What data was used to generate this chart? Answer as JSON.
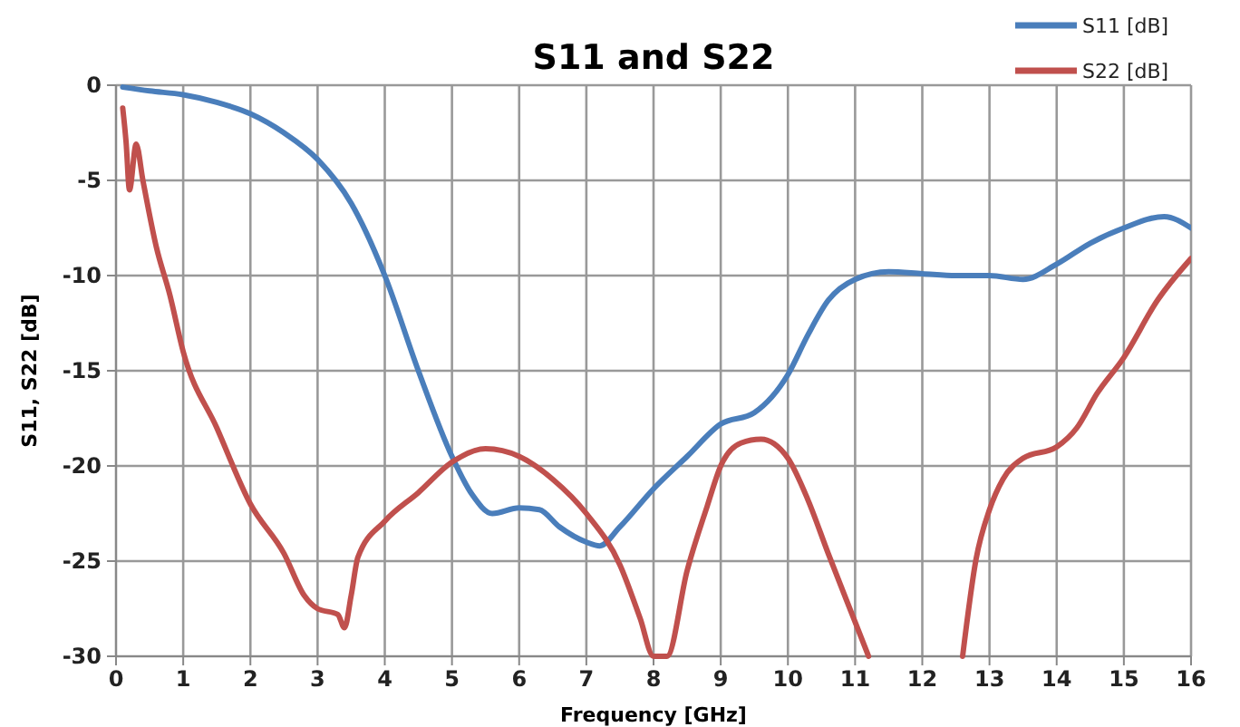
{
  "chart_data": {
    "type": "line",
    "title": "S11 and S22",
    "xlabel": "Frequency [GHz]",
    "ylabel": "S11, S22 [dB]",
    "xlim": [
      0,
      16
    ],
    "xticks": [
      0,
      1,
      2,
      3,
      4,
      5,
      6,
      7,
      8,
      9,
      10,
      11,
      12,
      13,
      14,
      15,
      16
    ],
    "ylim": [
      -30,
      0
    ],
    "yticks": [
      -30,
      -25,
      -20,
      -15,
      -10,
      -5,
      0
    ],
    "grid": true,
    "legend": "top right",
    "marker": "none",
    "line_style": "solid",
    "series": [
      {
        "name": "S11 [dB]",
        "color": "#4a7ebb",
        "x": [
          0.1,
          0.5,
          1,
          1.5,
          2,
          2.5,
          3,
          3.5,
          4,
          4.5,
          5,
          5.3,
          5.6,
          6,
          6.3,
          6.6,
          7,
          7.2,
          7.5,
          8,
          8.5,
          9,
          9.5,
          10,
          10.3,
          10.6,
          11,
          11.5,
          12,
          12.5,
          13,
          13.5,
          14,
          14.5,
          15,
          15.6,
          16
        ],
        "values": [
          -0.1,
          -0.3,
          -0.5,
          -0.9,
          -1.5,
          -2.5,
          -3.9,
          -6.2,
          -10,
          -15,
          -19.5,
          -21.5,
          -22.5,
          -22.2,
          -22.3,
          -23.2,
          -24,
          -24.2,
          -23.2,
          -21.2,
          -19.5,
          -17.8,
          -17.2,
          -15.2,
          -13.1,
          -11.3,
          -10.2,
          -9.8,
          -9.9,
          -10,
          -10,
          -10.2,
          -9.4,
          -8.3,
          -7.5,
          -6.9,
          -7.5
        ]
      },
      {
        "name": "S22 [dB]",
        "color": "#c0504d",
        "x": [
          0.1,
          0.15,
          0.2,
          0.3,
          0.4,
          0.6,
          0.8,
          1,
          1.5,
          2,
          2.5,
          2.8,
          3,
          3.3,
          3.4,
          3.5,
          3.6,
          4,
          4.5,
          5,
          5.5,
          6,
          6.5,
          7,
          7.5,
          7.8,
          8,
          8.2,
          8.5,
          8.8,
          9,
          9.3,
          9.6,
          10,
          10.3,
          10.6,
          11,
          11.2,
          11.9,
          12.6,
          12.8,
          13,
          13.2,
          13.5,
          14,
          14.3,
          14.6,
          15,
          15.5,
          16
        ],
        "values": [
          -1.2,
          -3,
          -5.5,
          -3.1,
          -5,
          -8.5,
          -11,
          -14,
          -18,
          -22,
          -24.6,
          -26.8,
          -27.5,
          -27.8,
          -28.5,
          -26.8,
          -24.8,
          -22.9,
          -21.4,
          -19.8,
          -19.1,
          -19.5,
          -20.7,
          -22.5,
          -25.2,
          -28,
          -30,
          -30,
          -25.5,
          -22.1,
          -20,
          -18.8,
          -18.6,
          -19.6,
          -21.8,
          -24.6,
          -28.2,
          -30,
          null,
          -30,
          -24.9,
          -22.3,
          -20.7,
          -19.6,
          -19,
          -18,
          -16.2,
          -14.3,
          -11.3,
          -9.1
        ]
      }
    ]
  }
}
